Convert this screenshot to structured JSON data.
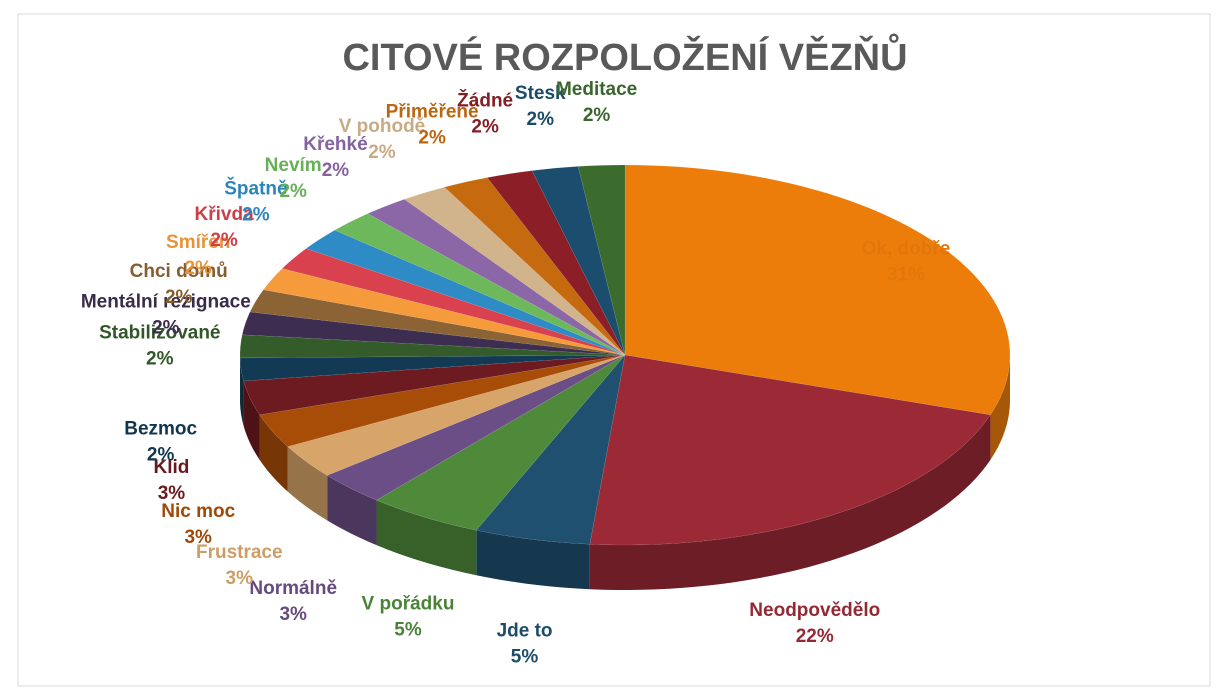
{
  "chart_data": {
    "type": "pie",
    "title": "CITOVÉ ROZPOLOŽENÍ VĚZŇŮ",
    "categories": [
      "Ok, dobře",
      "Neodpovědělo",
      "Jde to",
      "V pořádku",
      "Normálně",
      "Frustrace",
      "Nic moc",
      "Klid",
      "Bezmoc",
      "Stabilizované",
      "Mentální rezignace",
      "Chci domů",
      "Smířen",
      "Křivda",
      "Špatně",
      "Nevím",
      "Křehké",
      "V pohodě",
      "Přiměřeně",
      "Žádné",
      "Stesk",
      "Meditace"
    ],
    "values": [
      31,
      22,
      5,
      5,
      3,
      3,
      3,
      3,
      2,
      2,
      2,
      2,
      2,
      2,
      2,
      2,
      2,
      2,
      2,
      2,
      2,
      2
    ],
    "value_labels": [
      "31%",
      "22%",
      "5%",
      "5%",
      "3%",
      "3%",
      "3%",
      "3%",
      "2%",
      "2%",
      "2%",
      "2%",
      "2%",
      "2%",
      "2%",
      "2%",
      "2%",
      "2%",
      "2%",
      "2%",
      "2%",
      "2%"
    ],
    "colors": [
      "#ed7d0b",
      "#9c2a36",
      "#1f5070",
      "#4e8a3a",
      "#6b4e86",
      "#d7a56a",
      "#a84d07",
      "#6d1a20",
      "#123a54",
      "#345c2a",
      "#3d2d50",
      "#8b6334",
      "#f59b3c",
      "#d8414d",
      "#2e8bc6",
      "#6cb85a",
      "#8c67a8",
      "#d2b48c",
      "#c66a10",
      "#8b1e26",
      "#1b4e6e",
      "#3c6b2e"
    ]
  }
}
